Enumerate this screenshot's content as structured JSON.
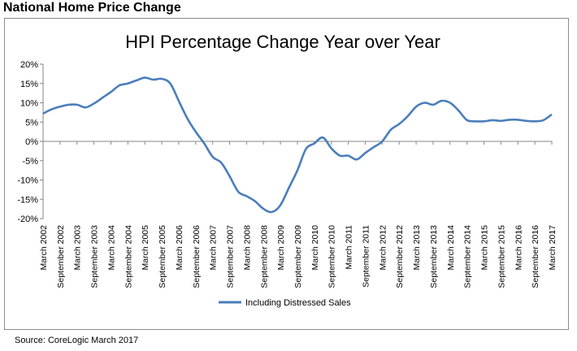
{
  "heading": "National Home Price Change",
  "source": "Source: CoreLogic March 2017",
  "chart_data": {
    "type": "line",
    "title": "HPI Percentage Change Year over Year",
    "xlabel": "",
    "ylabel": "",
    "ylim": [
      -20,
      20
    ],
    "y_ticks": [
      "20%",
      "15%",
      "10%",
      "5%",
      "0%",
      "-5%",
      "-10%",
      "-15%",
      "-20%"
    ],
    "grid": false,
    "legend_position": "bottom",
    "x_tick_labels": [
      "March 2002",
      "September 2002",
      "March 2003",
      "September 2003",
      "March 2004",
      "September 2004",
      "March 2005",
      "September 2005",
      "March 2006",
      "September 2006",
      "March 2007",
      "September 2007",
      "March 2008",
      "September 2008",
      "March 2009",
      "September 2009",
      "March 2010",
      "September 2010",
      "March 2011",
      "September 2011",
      "March 2012",
      "September 2012",
      "March 2013",
      "September 2013",
      "March 2014",
      "September 2014",
      "March 2015",
      "September 2015",
      "March 2016",
      "September 2016",
      "March 2017"
    ],
    "series": [
      {
        "name": "Including Distressed Sales",
        "color": "#4a7ebb",
        "x": [
          "2002-03",
          "2002-06",
          "2002-09",
          "2002-12",
          "2003-03",
          "2003-06",
          "2003-09",
          "2003-12",
          "2004-03",
          "2004-06",
          "2004-09",
          "2004-12",
          "2005-03",
          "2005-06",
          "2005-09",
          "2005-12",
          "2006-03",
          "2006-06",
          "2006-09",
          "2006-12",
          "2007-03",
          "2007-06",
          "2007-09",
          "2007-12",
          "2008-03",
          "2008-06",
          "2008-09",
          "2008-12",
          "2009-03",
          "2009-06",
          "2009-09",
          "2009-12",
          "2010-03",
          "2010-06",
          "2010-09",
          "2010-12",
          "2011-03",
          "2011-06",
          "2011-09",
          "2011-12",
          "2012-03",
          "2012-06",
          "2012-09",
          "2012-12",
          "2013-03",
          "2013-06",
          "2013-09",
          "2013-12",
          "2014-03",
          "2014-06",
          "2014-09",
          "2014-12",
          "2015-03",
          "2015-06",
          "2015-09",
          "2015-12",
          "2016-03",
          "2016-06",
          "2016-09",
          "2016-12",
          "2017-03"
        ],
        "values": [
          7.2,
          8.3,
          9.0,
          9.5,
          9.5,
          8.8,
          9.8,
          11.3,
          12.8,
          14.5,
          15.0,
          15.8,
          16.5,
          16.0,
          16.2,
          15.0,
          10.5,
          6.0,
          2.5,
          -0.5,
          -4.0,
          -5.5,
          -9.0,
          -13.0,
          -14.2,
          -15.5,
          -17.5,
          -18.3,
          -16.5,
          -12.0,
          -7.5,
          -2.0,
          -0.5,
          1.0,
          -1.8,
          -3.7,
          -3.7,
          -4.7,
          -3.0,
          -1.5,
          0.0,
          3.0,
          4.5,
          6.5,
          9.0,
          10.0,
          9.5,
          10.5,
          10.0,
          8.0,
          5.5,
          5.2,
          5.2,
          5.5,
          5.3,
          5.6,
          5.6,
          5.3,
          5.2,
          5.5,
          7.0
        ]
      }
    ]
  }
}
